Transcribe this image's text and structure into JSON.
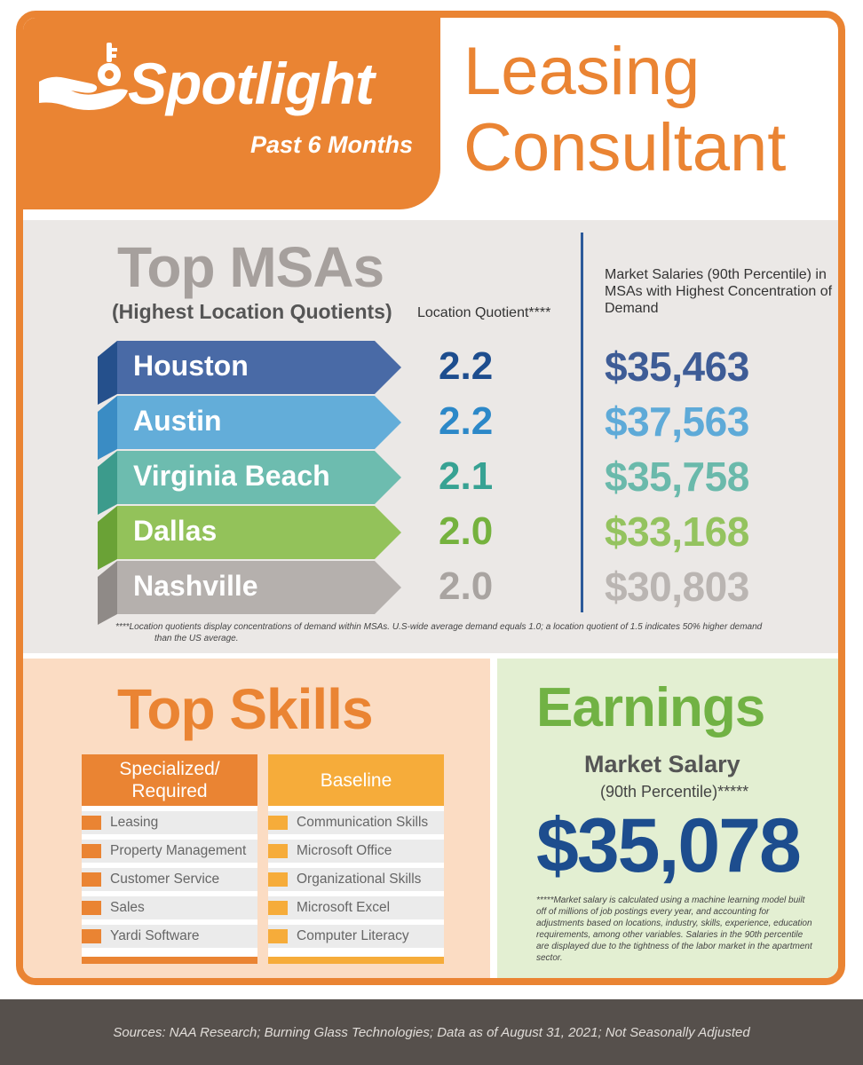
{
  "header": {
    "brand": "Spotlight",
    "period": "Past 6 Months",
    "job_title_line1": "Leasing",
    "job_title_line2": "Consultant",
    "icon": "hand-key-icon"
  },
  "msa": {
    "title": "Top MSAs",
    "subtitle": "(Highest Location Quotients)",
    "lq_header": "Location Quotient****",
    "salary_header": "Market Salaries (90th Percentile) in MSAs with Highest Concentration of Demand",
    "rows": [
      {
        "city": "Houston",
        "lq": "2.2",
        "salary": "$35,463",
        "ribbon_color": "#496aa6",
        "side_color": "#25508c",
        "text_color": "#1d4d8e",
        "salary_color": "#3e5c96"
      },
      {
        "city": "Austin",
        "lq": "2.2",
        "salary": "$37,563",
        "ribbon_color": "#63add9",
        "side_color": "#3a8cc4",
        "text_color": "#2c88c8",
        "salary_color": "#5eaad8"
      },
      {
        "city": "Virginia Beach",
        "lq": "2.1",
        "salary": "$35,758",
        "ribbon_color": "#6dbcaf",
        "side_color": "#3c9b8c",
        "text_color": "#37a293",
        "salary_color": "#6ab9ab"
      },
      {
        "city": "Dallas",
        "lq": "2.0",
        "salary": "$33,168",
        "ribbon_color": "#93c25a",
        "side_color": "#6aa236",
        "text_color": "#75b23e",
        "salary_color": "#94c35f"
      },
      {
        "city": "Nashville",
        "lq": "2.0",
        "salary": "$30,803",
        "ribbon_color": "#b5b0ad",
        "side_color": "#8f8a87",
        "text_color": "#a9a4a1",
        "salary_color": "#bab5b2"
      }
    ],
    "note_line1": "****Location quotients display concentrations of demand within MSAs. U.S-wide average demand equals 1.0; a location quotient of 1.5 indicates 50% higher demand",
    "note_line2": "than the US average."
  },
  "skills": {
    "title": "Top Skills",
    "specialized": {
      "header_line1": "Specialized/",
      "header_line2": "Required",
      "color": "#ea8433",
      "items": [
        "Leasing",
        "Property Management",
        "Customer Service",
        "Sales",
        "Yardi Software"
      ]
    },
    "baseline": {
      "header": "Baseline",
      "color": "#f6ac3a",
      "items": [
        "Communication Skills",
        "Microsoft Office",
        "Organizational Skills",
        "Microsoft Excel",
        "Computer Literacy"
      ]
    }
  },
  "earnings": {
    "title": "Earnings",
    "label": "Market Salary",
    "percentile": "(90th Percentile)*****",
    "value": "$35,078",
    "note": "*****Market salary is calculated using a machine learning model built off of millions of job postings every year, and accounting for adjustments based on locations, industry, skills, experience, education requirements, among other variables. Salaries in the 90th percentile are displayed due to the tightness of the labor market in the apartment sector."
  },
  "footer": {
    "sources": "Sources:  NAA Research; Burning Glass Technologies; Data as of August 31, 2021; Not Seasonally Adjusted"
  },
  "colors": {
    "brand_orange": "#ea8433",
    "msa_bg": "#ebe8e6",
    "skills_bg": "#fbdcc3",
    "earnings_bg": "#e3efd2",
    "footer_bg": "#56504c"
  }
}
